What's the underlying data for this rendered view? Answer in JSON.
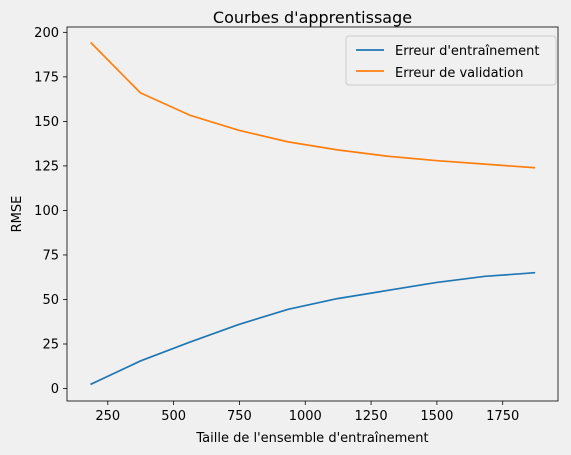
{
  "chart_data": {
    "type": "line",
    "title": "Courbes d'apprentissage",
    "xlabel": "Taille de l'ensemble d'entraînement",
    "ylabel": "RMSE",
    "xlim": [
      95,
      1960
    ],
    "ylim": [
      -7,
      203
    ],
    "xticks": [
      250,
      500,
      750,
      1000,
      1250,
      1500,
      1750
    ],
    "yticks": [
      0,
      25,
      50,
      75,
      100,
      125,
      150,
      175,
      200
    ],
    "grid": false,
    "legend_position": "top-right",
    "x": [
      187,
      374,
      561,
      748,
      935,
      1122,
      1309,
      1496,
      1683,
      1870
    ],
    "series": [
      {
        "name": "Erreur d'entraînement",
        "color": "#1f77b4",
        "values": [
          2.5,
          15.5,
          26,
          36,
          44.5,
          50.5,
          55,
          59.5,
          63,
          65
        ]
      },
      {
        "name": "Erreur de validation",
        "color": "#ff7f0e",
        "values": [
          194,
          166,
          153.5,
          145,
          138.5,
          134,
          130.5,
          128,
          126,
          124
        ]
      }
    ]
  }
}
